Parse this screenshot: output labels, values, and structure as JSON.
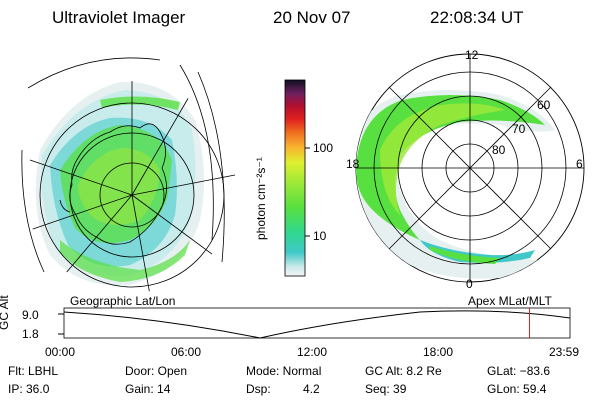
{
  "header": {
    "title": "Ultraviolet Imager",
    "date": "20 Nov 07",
    "time": "22:08:34 UT"
  },
  "colorbar": {
    "label": "photon cm⁻²s⁻¹",
    "ticks": [
      "100",
      "10"
    ],
    "colors": [
      "#f0f0f0",
      "#d0ecec",
      "#40c8c8",
      "#30d890",
      "#58e040",
      "#a0e838",
      "#e0f030",
      "#f8b030",
      "#f07020",
      "#e02020",
      "#b01030",
      "#702060",
      "#301050",
      "#101020"
    ]
  },
  "geo_map": {
    "label": "Geographic Lat/Lon"
  },
  "mag_map": {
    "label": "Apex MLat/MLT",
    "mlt_labels": {
      "top": "12",
      "left": "18",
      "right": "6",
      "bottom": "0"
    },
    "lat_labels": [
      "60",
      "70",
      "80"
    ]
  },
  "timeline": {
    "ylabel": "GC Alt",
    "y_ticks": [
      "9.0",
      "1.8"
    ],
    "x_ticks": [
      "00:00",
      "06:00",
      "12:00",
      "18:00",
      "23:59"
    ],
    "marker_fraction": 0.92,
    "marker_color": "#e02020"
  },
  "info": {
    "row1": {
      "flt": "Flt: LBHL",
      "door": "Door: Open",
      "mode": "Mode: Normal",
      "gcalt": "GC Alt: 8.2 Re",
      "glat": "GLat: −83.6"
    },
    "row2": {
      "ip": "IP: 36.0",
      "gain": "Gain: 14",
      "dsp_label": "Dsp:",
      "dsp_value": "4.2",
      "seq": "Seq: 39",
      "glon": "GLon: 59.4"
    }
  }
}
